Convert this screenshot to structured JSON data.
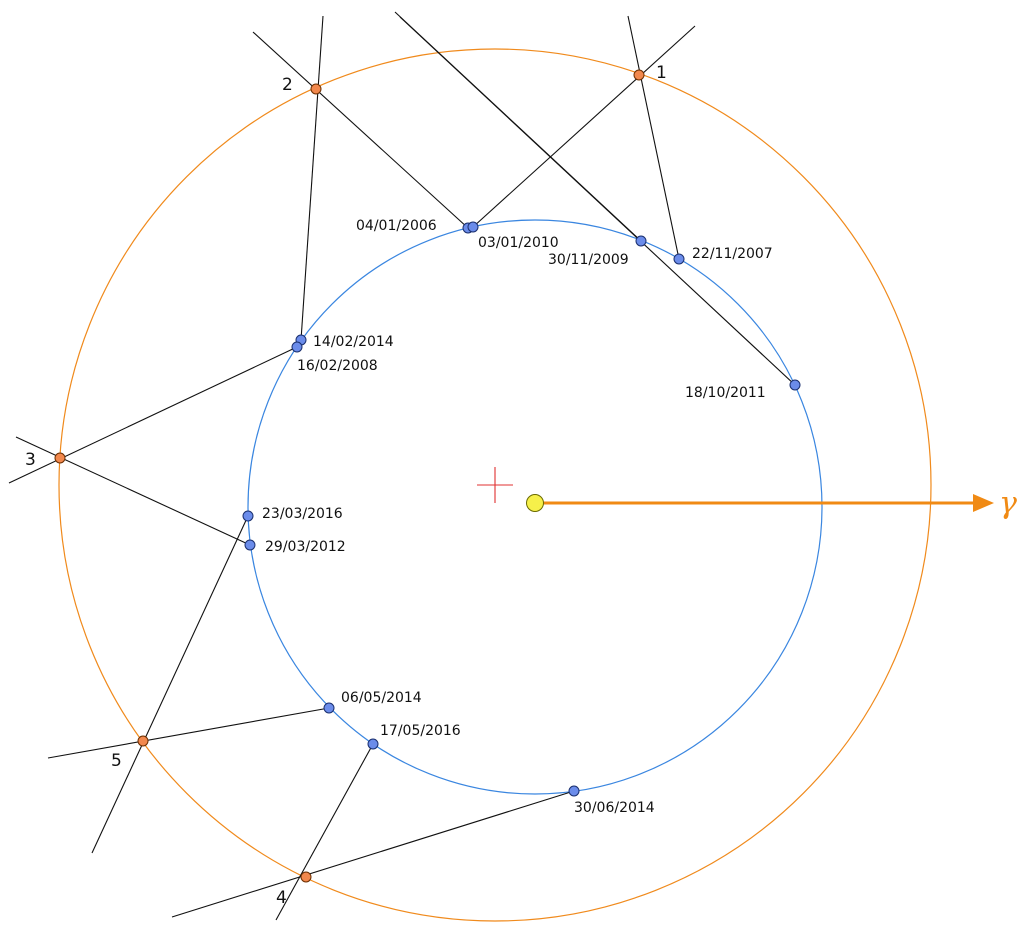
{
  "colors": {
    "mars_orbit": "#f08a1c",
    "earth_orbit": "#3a86e0",
    "earth_point": "#6b8cea",
    "mars_point": "#f2884d",
    "sun": "#f6f04a",
    "center_cross": "#e03030",
    "gamma_arrow": "#f08a14"
  },
  "gamma_symbol": "γ",
  "mars_positions": [
    {
      "id": "mars-1",
      "label": "1"
    },
    {
      "id": "mars-2",
      "label": "2"
    },
    {
      "id": "mars-3",
      "label": "3"
    },
    {
      "id": "mars-4",
      "label": "4"
    },
    {
      "id": "mars-5",
      "label": "5"
    }
  ],
  "earth_dates": [
    {
      "id": "d-2006-01-04",
      "label": "04/01/2006"
    },
    {
      "id": "d-2010-01-03",
      "label": "03/01/2010"
    },
    {
      "id": "d-2009-11-30",
      "label": "30/11/2009"
    },
    {
      "id": "d-2007-11-22",
      "label": "22/11/2007"
    },
    {
      "id": "d-2014-02-14",
      "label": "14/02/2014"
    },
    {
      "id": "d-2008-02-16",
      "label": "16/02/2008"
    },
    {
      "id": "d-2011-10-18",
      "label": "18/10/2011"
    },
    {
      "id": "d-2016-03-23",
      "label": "23/03/2016"
    },
    {
      "id": "d-2012-03-29",
      "label": "29/03/2012"
    },
    {
      "id": "d-2014-05-06",
      "label": "06/05/2014"
    },
    {
      "id": "d-2016-05-17",
      "label": "17/05/2016"
    },
    {
      "id": "d-2014-06-30",
      "label": "30/06/2014"
    }
  ]
}
